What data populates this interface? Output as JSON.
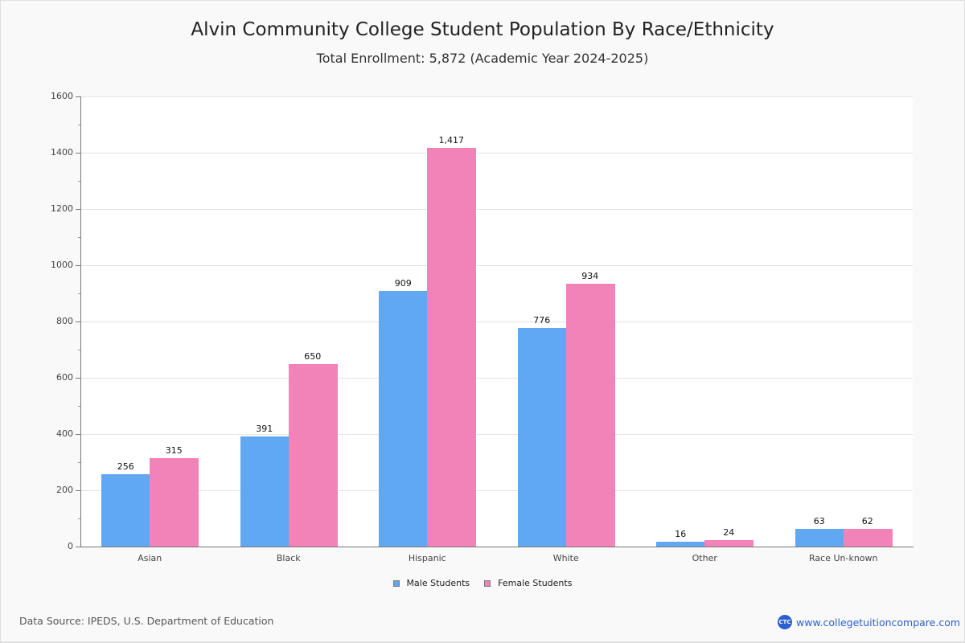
{
  "header": {
    "title": "Alvin Community College Student Population By Race/Ethnicity",
    "subtitle": "Total Enrollment: 5,872 (Academic Year 2024-2025)"
  },
  "y_axis": {
    "ticks": [
      "0",
      "200",
      "400",
      "600",
      "800",
      "1000",
      "1200",
      "1400",
      "1600"
    ]
  },
  "categories": [
    {
      "label": "Asian",
      "male": 256,
      "female": 315,
      "male_label": "256",
      "female_label": "315"
    },
    {
      "label": "Black",
      "male": 391,
      "female": 650,
      "male_label": "391",
      "female_label": "650"
    },
    {
      "label": "Hispanic",
      "male": 909,
      "female": 1417,
      "male_label": "909",
      "female_label": "1,417"
    },
    {
      "label": "White",
      "male": 776,
      "female": 934,
      "male_label": "776",
      "female_label": "934"
    },
    {
      "label": "Other",
      "male": 16,
      "female": 24,
      "male_label": "16",
      "female_label": "24"
    },
    {
      "label": "Race Un-known",
      "male": 63,
      "female": 62,
      "male_label": "63",
      "female_label": "62"
    }
  ],
  "legend": {
    "male": "Male Students",
    "female": "Female Students"
  },
  "colors": {
    "male": "#60a8f2",
    "female": "#f283b9"
  },
  "footer": {
    "source": "Data Source: IPEDS, U.S. Department of Education",
    "brand_logo": "CTC",
    "brand_url": "www.collegetuitioncompare.com"
  },
  "chart_data": {
    "type": "bar",
    "title": "Alvin Community College Student Population By Race/Ethnicity",
    "subtitle": "Total Enrollment: 5,872 (Academic Year 2024-2025)",
    "categories": [
      "Asian",
      "Black",
      "Hispanic",
      "White",
      "Other",
      "Race Un-known"
    ],
    "series": [
      {
        "name": "Male Students",
        "color": "#60a8f2",
        "values": [
          256,
          391,
          909,
          776,
          16,
          63
        ]
      },
      {
        "name": "Female Students",
        "color": "#f283b9",
        "values": [
          315,
          650,
          1417,
          934,
          24,
          62
        ]
      }
    ],
    "xlabel": "",
    "ylabel": "",
    "ylim": [
      0,
      1600
    ],
    "yticks": [
      0,
      200,
      400,
      600,
      800,
      1000,
      1200,
      1400,
      1600
    ],
    "grid": true,
    "legend_position": "bottom",
    "source": "Data Source: IPEDS, U.S. Department of Education"
  }
}
